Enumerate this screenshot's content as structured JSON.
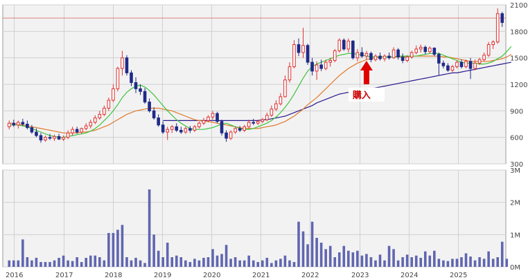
{
  "chart_data": [
    {
      "type": "candlestick",
      "ylim": [
        300,
        2100
      ],
      "y_ticks": [
        "2100",
        "1800",
        "1500",
        "1200",
        "900",
        "600",
        "300"
      ],
      "x_ticks": [
        "2016",
        "2017",
        "2018",
        "2019",
        "2020",
        "2021",
        "2022",
        "2023",
        "2024",
        "2025"
      ],
      "reference_line": 1950,
      "candles": [
        {
          "o": 720,
          "h": 790,
          "l": 690,
          "c": 760
        },
        {
          "o": 760,
          "h": 800,
          "l": 720,
          "c": 740
        },
        {
          "o": 740,
          "h": 790,
          "l": 700,
          "c": 770
        },
        {
          "o": 770,
          "h": 810,
          "l": 730,
          "c": 750
        },
        {
          "o": 750,
          "h": 790,
          "l": 690,
          "c": 710
        },
        {
          "o": 710,
          "h": 740,
          "l": 640,
          "c": 660
        },
        {
          "o": 660,
          "h": 700,
          "l": 600,
          "c": 620
        },
        {
          "o": 620,
          "h": 650,
          "l": 540,
          "c": 570
        },
        {
          "o": 570,
          "h": 620,
          "l": 550,
          "c": 600
        },
        {
          "o": 600,
          "h": 640,
          "l": 570,
          "c": 590
        },
        {
          "o": 590,
          "h": 630,
          "l": 560,
          "c": 610
        },
        {
          "o": 610,
          "h": 640,
          "l": 570,
          "c": 580
        },
        {
          "o": 580,
          "h": 620,
          "l": 560,
          "c": 600
        },
        {
          "o": 600,
          "h": 680,
          "l": 580,
          "c": 650
        },
        {
          "o": 650,
          "h": 720,
          "l": 620,
          "c": 690
        },
        {
          "o": 690,
          "h": 720,
          "l": 640,
          "c": 660
        },
        {
          "o": 660,
          "h": 710,
          "l": 640,
          "c": 700
        },
        {
          "o": 700,
          "h": 760,
          "l": 680,
          "c": 730
        },
        {
          "o": 730,
          "h": 800,
          "l": 700,
          "c": 770
        },
        {
          "o": 770,
          "h": 850,
          "l": 750,
          "c": 820
        },
        {
          "o": 820,
          "h": 900,
          "l": 800,
          "c": 860
        },
        {
          "o": 860,
          "h": 960,
          "l": 840,
          "c": 930
        },
        {
          "o": 930,
          "h": 1050,
          "l": 900,
          "c": 1020
        },
        {
          "o": 1020,
          "h": 1200,
          "l": 1000,
          "c": 1150
        },
        {
          "o": 1150,
          "h": 1400,
          "l": 1120,
          "c": 1380
        },
        {
          "o": 1380,
          "h": 1580,
          "l": 1300,
          "c": 1500
        },
        {
          "o": 1500,
          "h": 1530,
          "l": 1300,
          "c": 1330
        },
        {
          "o": 1330,
          "h": 1360,
          "l": 1180,
          "c": 1220
        },
        {
          "o": 1220,
          "h": 1280,
          "l": 1100,
          "c": 1150
        },
        {
          "o": 1150,
          "h": 1200,
          "l": 1080,
          "c": 1120
        },
        {
          "o": 1120,
          "h": 1160,
          "l": 980,
          "c": 1000
        },
        {
          "o": 1000,
          "h": 1040,
          "l": 880,
          "c": 900
        },
        {
          "o": 900,
          "h": 940,
          "l": 800,
          "c": 820
        },
        {
          "o": 820,
          "h": 860,
          "l": 720,
          "c": 740
        },
        {
          "o": 740,
          "h": 780,
          "l": 640,
          "c": 660
        },
        {
          "o": 660,
          "h": 720,
          "l": 570,
          "c": 690
        },
        {
          "o": 690,
          "h": 740,
          "l": 650,
          "c": 720
        },
        {
          "o": 720,
          "h": 760,
          "l": 660,
          "c": 680
        },
        {
          "o": 680,
          "h": 720,
          "l": 640,
          "c": 660
        },
        {
          "o": 660,
          "h": 720,
          "l": 640,
          "c": 700
        },
        {
          "o": 700,
          "h": 730,
          "l": 650,
          "c": 680
        },
        {
          "o": 680,
          "h": 740,
          "l": 660,
          "c": 720
        },
        {
          "o": 720,
          "h": 780,
          "l": 700,
          "c": 760
        },
        {
          "o": 760,
          "h": 820,
          "l": 740,
          "c": 790
        },
        {
          "o": 790,
          "h": 850,
          "l": 770,
          "c": 830
        },
        {
          "o": 830,
          "h": 900,
          "l": 800,
          "c": 870
        },
        {
          "o": 870,
          "h": 890,
          "l": 760,
          "c": 780
        },
        {
          "o": 780,
          "h": 800,
          "l": 620,
          "c": 650
        },
        {
          "o": 650,
          "h": 680,
          "l": 550,
          "c": 590
        },
        {
          "o": 590,
          "h": 680,
          "l": 570,
          "c": 660
        },
        {
          "o": 660,
          "h": 720,
          "l": 640,
          "c": 700
        },
        {
          "o": 700,
          "h": 730,
          "l": 660,
          "c": 680
        },
        {
          "o": 680,
          "h": 740,
          "l": 660,
          "c": 720
        },
        {
          "o": 720,
          "h": 800,
          "l": 700,
          "c": 770
        },
        {
          "o": 770,
          "h": 810,
          "l": 740,
          "c": 760
        },
        {
          "o": 760,
          "h": 800,
          "l": 740,
          "c": 780
        },
        {
          "o": 780,
          "h": 820,
          "l": 760,
          "c": 800
        },
        {
          "o": 800,
          "h": 880,
          "l": 780,
          "c": 850
        },
        {
          "o": 850,
          "h": 960,
          "l": 830,
          "c": 920
        },
        {
          "o": 920,
          "h": 1020,
          "l": 900,
          "c": 980
        },
        {
          "o": 980,
          "h": 1100,
          "l": 960,
          "c": 1060
        },
        {
          "o": 1060,
          "h": 1300,
          "l": 1050,
          "c": 1250
        },
        {
          "o": 1250,
          "h": 1450,
          "l": 1220,
          "c": 1400
        },
        {
          "o": 1400,
          "h": 1700,
          "l": 1380,
          "c": 1650
        },
        {
          "o": 1650,
          "h": 1720,
          "l": 1520,
          "c": 1560
        },
        {
          "o": 1560,
          "h": 1840,
          "l": 1500,
          "c": 1640
        },
        {
          "o": 1640,
          "h": 1660,
          "l": 1420,
          "c": 1450
        },
        {
          "o": 1450,
          "h": 1500,
          "l": 1300,
          "c": 1350
        },
        {
          "o": 1350,
          "h": 1460,
          "l": 1250,
          "c": 1420
        },
        {
          "o": 1420,
          "h": 1480,
          "l": 1350,
          "c": 1380
        },
        {
          "o": 1380,
          "h": 1480,
          "l": 1360,
          "c": 1450
        },
        {
          "o": 1450,
          "h": 1500,
          "l": 1400,
          "c": 1470
        },
        {
          "o": 1470,
          "h": 1600,
          "l": 1450,
          "c": 1580
        },
        {
          "o": 1580,
          "h": 1720,
          "l": 1560,
          "c": 1700
        },
        {
          "o": 1700,
          "h": 1720,
          "l": 1580,
          "c": 1600
        },
        {
          "o": 1600,
          "h": 1720,
          "l": 1560,
          "c": 1690
        },
        {
          "o": 1690,
          "h": 1700,
          "l": 1480,
          "c": 1500
        },
        {
          "o": 1500,
          "h": 1600,
          "l": 1460,
          "c": 1560
        },
        {
          "o": 1560,
          "h": 1620,
          "l": 1500,
          "c": 1520
        },
        {
          "o": 1520,
          "h": 1580,
          "l": 1480,
          "c": 1550
        },
        {
          "o": 1550,
          "h": 1570,
          "l": 1450,
          "c": 1480
        },
        {
          "o": 1480,
          "h": 1540,
          "l": 1460,
          "c": 1520
        },
        {
          "o": 1520,
          "h": 1560,
          "l": 1470,
          "c": 1490
        },
        {
          "o": 1490,
          "h": 1540,
          "l": 1460,
          "c": 1520
        },
        {
          "o": 1520,
          "h": 1560,
          "l": 1480,
          "c": 1500
        },
        {
          "o": 1500,
          "h": 1620,
          "l": 1490,
          "c": 1590
        },
        {
          "o": 1590,
          "h": 1610,
          "l": 1480,
          "c": 1510
        },
        {
          "o": 1510,
          "h": 1550,
          "l": 1440,
          "c": 1470
        },
        {
          "o": 1470,
          "h": 1530,
          "l": 1450,
          "c": 1510
        },
        {
          "o": 1510,
          "h": 1580,
          "l": 1490,
          "c": 1560
        },
        {
          "o": 1560,
          "h": 1640,
          "l": 1540,
          "c": 1600
        },
        {
          "o": 1600,
          "h": 1650,
          "l": 1560,
          "c": 1620
        },
        {
          "o": 1620,
          "h": 1640,
          "l": 1540,
          "c": 1570
        },
        {
          "o": 1570,
          "h": 1630,
          "l": 1550,
          "c": 1610
        },
        {
          "o": 1610,
          "h": 1620,
          "l": 1520,
          "c": 1540
        },
        {
          "o": 1540,
          "h": 1560,
          "l": 1300,
          "c": 1440
        },
        {
          "o": 1440,
          "h": 1470,
          "l": 1380,
          "c": 1410
        },
        {
          "o": 1410,
          "h": 1440,
          "l": 1340,
          "c": 1360
        },
        {
          "o": 1360,
          "h": 1420,
          "l": 1340,
          "c": 1400
        },
        {
          "o": 1400,
          "h": 1470,
          "l": 1380,
          "c": 1450
        },
        {
          "o": 1450,
          "h": 1480,
          "l": 1380,
          "c": 1400
        },
        {
          "o": 1400,
          "h": 1480,
          "l": 1380,
          "c": 1460
        },
        {
          "o": 1460,
          "h": 1500,
          "l": 1260,
          "c": 1380
        },
        {
          "o": 1380,
          "h": 1480,
          "l": 1360,
          "c": 1440
        },
        {
          "o": 1440,
          "h": 1500,
          "l": 1420,
          "c": 1480
        },
        {
          "o": 1480,
          "h": 1560,
          "l": 1460,
          "c": 1530
        },
        {
          "o": 1530,
          "h": 1680,
          "l": 1510,
          "c": 1650
        },
        {
          "o": 1650,
          "h": 1700,
          "l": 1600,
          "c": 1680
        },
        {
          "o": 1680,
          "h": 2060,
          "l": 1660,
          "c": 2000
        },
        {
          "o": 2000,
          "h": 2020,
          "l": 1850,
          "c": 1900
        }
      ],
      "ma_short": [
        740,
        740,
        740,
        730,
        720,
        700,
        680,
        660,
        640,
        620,
        610,
        600,
        600,
        610,
        620,
        630,
        640,
        650,
        670,
        700,
        740,
        790,
        840,
        900,
        970,
        1050,
        1110,
        1150,
        1180,
        1190,
        1170,
        1130,
        1080,
        1020,
        960,
        900,
        850,
        800,
        760,
        730,
        700,
        690,
        690,
        690,
        700,
        710,
        730,
        750,
        760,
        740,
        720,
        700,
        690,
        690,
        700,
        720,
        740,
        760,
        790,
        830,
        880,
        940,
        1010,
        1090,
        1180,
        1270,
        1350,
        1400,
        1430,
        1450,
        1470,
        1490,
        1510,
        1530,
        1540,
        1550,
        1550,
        1540,
        1530,
        1520,
        1510,
        1510,
        1510,
        1510,
        1510,
        1510,
        1520,
        1520,
        1520,
        1520,
        1520,
        1530,
        1540,
        1550,
        1550,
        1550,
        1530,
        1510,
        1490,
        1470,
        1450,
        1440,
        1440,
        1440,
        1430,
        1430,
        1440,
        1460,
        1490,
        1520,
        1570,
        1630
      ],
      "ma_mid": [
        760,
        760,
        750,
        740,
        730,
        720,
        710,
        700,
        690,
        680,
        670,
        660,
        650,
        650,
        650,
        650,
        660,
        660,
        670,
        680,
        700,
        720,
        740,
        770,
        800,
        830,
        860,
        880,
        900,
        910,
        920,
        930,
        930,
        930,
        920,
        910,
        900,
        880,
        860,
        840,
        820,
        800,
        790,
        780,
        780,
        770,
        760,
        750,
        740,
        730,
        720,
        710,
        700,
        700,
        700,
        700,
        710,
        720,
        730,
        740,
        760,
        780,
        810,
        840,
        880,
        920,
        970,
        1010,
        1050,
        1100,
        1150,
        1200,
        1250,
        1300,
        1340,
        1380,
        1410,
        1440,
        1460,
        1480,
        1490,
        1500,
        1510,
        1510,
        1510,
        1510,
        1510,
        1510,
        1510,
        1520,
        1520,
        1520,
        1520,
        1520,
        1520,
        1520,
        1510,
        1510,
        1500,
        1490,
        1480,
        1470,
        1460,
        1460,
        1460,
        1460,
        1460,
        1470,
        1480,
        1490,
        1510,
        1540
      ],
      "ma_long": [
        null,
        null,
        null,
        null,
        null,
        null,
        null,
        null,
        null,
        null,
        null,
        null,
        null,
        null,
        null,
        null,
        null,
        null,
        null,
        null,
        null,
        null,
        null,
        null,
        null,
        null,
        null,
        null,
        null,
        null,
        null,
        null,
        null,
        null,
        790,
        790,
        790,
        790,
        790,
        790,
        790,
        790,
        790,
        790,
        790,
        790,
        790,
        790,
        790,
        790,
        790,
        790,
        790,
        790,
        790,
        790,
        800,
        800,
        810,
        820,
        830,
        840,
        860,
        880,
        900,
        920,
        940,
        960,
        990,
        1010,
        1030,
        1050,
        1070,
        1090,
        1100,
        1110,
        1120,
        1130,
        1140,
        1150,
        1150,
        1160,
        1170,
        1180,
        1190,
        1200,
        1210,
        1220,
        1230,
        1240,
        1250,
        1260,
        1270,
        1280,
        1290,
        1300,
        1310,
        1320,
        1330,
        1330,
        1340,
        1350,
        1360,
        1370,
        1380,
        1390,
        1400,
        1410,
        1420,
        1430,
        1440,
        1450
      ],
      "annotation": {
        "text": "購入",
        "at_index": 79,
        "price": 1530
      }
    },
    {
      "type": "bar",
      "ylim": [
        0,
        3000000
      ],
      "y_ticks": [
        "3M",
        "2M",
        "1M",
        "0M"
      ],
      "x_ticks": [
        "2016",
        "2017",
        "2018",
        "2019",
        "2020",
        "2021",
        "2022",
        "2023",
        "2024",
        "2025"
      ],
      "volume": [
        200000,
        200000,
        200000,
        850000,
        300000,
        200000,
        280000,
        150000,
        150000,
        150000,
        200000,
        280000,
        350000,
        200000,
        180000,
        300000,
        150000,
        280000,
        350000,
        350000,
        300000,
        200000,
        1050000,
        1050000,
        1150000,
        1300000,
        300000,
        200000,
        280000,
        200000,
        120000,
        2400000,
        1000000,
        500000,
        300000,
        750000,
        300000,
        350000,
        300000,
        200000,
        150000,
        250000,
        200000,
        280000,
        300000,
        550000,
        350000,
        400000,
        680000,
        250000,
        300000,
        200000,
        200000,
        350000,
        200000,
        150000,
        200000,
        280000,
        120000,
        200000,
        250000,
        350000,
        200000,
        150000,
        1400000,
        1100000,
        700000,
        1400000,
        900000,
        750000,
        550000,
        650000,
        300000,
        450000,
        650000,
        500000,
        450000,
        500000,
        350000,
        400000,
        300000,
        200000,
        380000,
        200000,
        650000,
        550000,
        200000,
        300000,
        380000,
        300000,
        350000,
        280000,
        480000,
        350000,
        500000,
        250000,
        200000,
        180000,
        250000,
        250000,
        300000,
        420000,
        320000,
        200000,
        300000,
        250000,
        480000,
        250000,
        300000,
        780000,
        250000
      ]
    }
  ]
}
